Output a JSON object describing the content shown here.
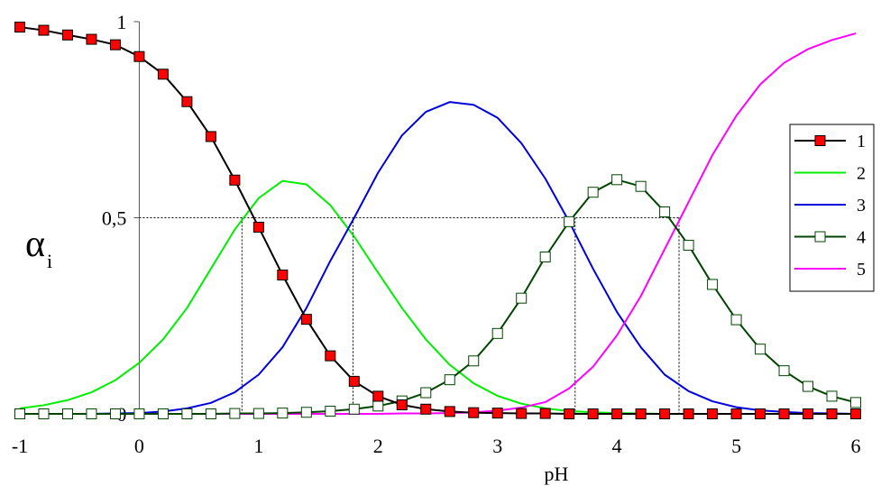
{
  "chart_data": {
    "type": "line",
    "xlabel": "pH",
    "ylabel_main": "α",
    "ylabel_sub": "i",
    "xlim": [
      -1,
      6
    ],
    "ylim": [
      0,
      1
    ],
    "x_ticks": [
      -1,
      0,
      1,
      2,
      3,
      4,
      5,
      6
    ],
    "x_tick_labels": [
      "-1",
      "0",
      "1",
      "2",
      "3",
      "4",
      "5",
      "6"
    ],
    "y_ticks": [
      0,
      0.5,
      1
    ],
    "y_tick_labels": [
      "0",
      "0,5",
      "1"
    ],
    "legend_position": "right",
    "reference_level": 0.5,
    "reference_x": [
      0.86,
      1.79,
      3.65,
      4.52
    ],
    "x": [
      -1.0,
      -0.8,
      -0.6,
      -0.4,
      -0.2,
      0.0,
      0.2,
      0.4,
      0.6,
      0.8,
      1.0,
      1.2,
      1.4,
      1.6,
      1.8,
      2.0,
      2.2,
      2.4,
      2.6,
      2.8,
      3.0,
      3.2,
      3.4,
      3.6,
      3.8,
      4.0,
      4.2,
      4.4,
      4.6,
      4.8,
      5.0,
      5.2,
      5.4,
      5.6,
      5.8,
      6.0
    ],
    "series": [
      {
        "name": "1",
        "color": "#000000",
        "marker": "filled-square",
        "marker_fill": "#ff0000",
        "values": [
          0.986,
          0.978,
          0.966,
          0.955,
          0.941,
          0.911,
          0.866,
          0.796,
          0.707,
          0.596,
          0.476,
          0.354,
          0.241,
          0.148,
          0.083,
          0.045,
          0.023,
          0.012,
          0.006,
          0.003,
          0.002,
          0.001,
          0.001,
          0.0,
          0.0,
          0.0,
          0.0,
          0.0,
          0.0,
          0.0,
          0.0,
          0.0,
          0.0,
          0.0,
          0.0,
          0.0
        ]
      },
      {
        "name": "2",
        "color": "#00ee00",
        "marker": "none",
        "values": [
          0.014,
          0.022,
          0.035,
          0.055,
          0.086,
          0.13,
          0.19,
          0.27,
          0.37,
          0.47,
          0.55,
          0.594,
          0.585,
          0.532,
          0.452,
          0.36,
          0.27,
          0.19,
          0.125,
          0.078,
          0.046,
          0.026,
          0.014,
          0.007,
          0.004,
          0.002,
          0.001,
          0.0,
          0.0,
          0.0,
          0.0,
          0.0,
          0.0,
          0.0,
          0.0,
          0.0
        ]
      },
      {
        "name": "3",
        "color": "#0000dd",
        "marker": "none",
        "values": [
          0.0,
          0.0,
          0.0,
          0.0,
          0.001,
          0.002,
          0.006,
          0.014,
          0.028,
          0.055,
          0.1,
          0.17,
          0.27,
          0.39,
          0.5,
          0.615,
          0.71,
          0.77,
          0.795,
          0.788,
          0.755,
          0.69,
          0.6,
          0.49,
          0.37,
          0.26,
          0.17,
          0.1,
          0.058,
          0.032,
          0.017,
          0.009,
          0.005,
          0.002,
          0.001,
          0.0
        ]
      },
      {
        "name": "4",
        "color": "#004400",
        "marker": "hollow-square",
        "marker_fill": "#ffffff",
        "values": [
          0.0,
          0.0,
          0.0,
          0.0,
          0.0,
          0.0,
          0.0,
          0.0,
          0.0,
          0.001,
          0.001,
          0.002,
          0.004,
          0.007,
          0.012,
          0.02,
          0.033,
          0.054,
          0.087,
          0.135,
          0.205,
          0.295,
          0.4,
          0.49,
          0.565,
          0.597,
          0.58,
          0.515,
          0.43,
          0.33,
          0.24,
          0.165,
          0.11,
          0.07,
          0.045,
          0.029
        ]
      },
      {
        "name": "5",
        "color": "#ff00ff",
        "marker": "none",
        "values": [
          0.0,
          0.0,
          0.0,
          0.0,
          0.0,
          0.0,
          0.0,
          0.0,
          0.0,
          0.0,
          0.0,
          0.0,
          0.0,
          0.0,
          0.0,
          0.0,
          0.001,
          0.001,
          0.002,
          0.004,
          0.008,
          0.016,
          0.03,
          0.065,
          0.12,
          0.2,
          0.3,
          0.42,
          0.54,
          0.66,
          0.76,
          0.84,
          0.895,
          0.93,
          0.953,
          0.97
        ]
      }
    ]
  }
}
